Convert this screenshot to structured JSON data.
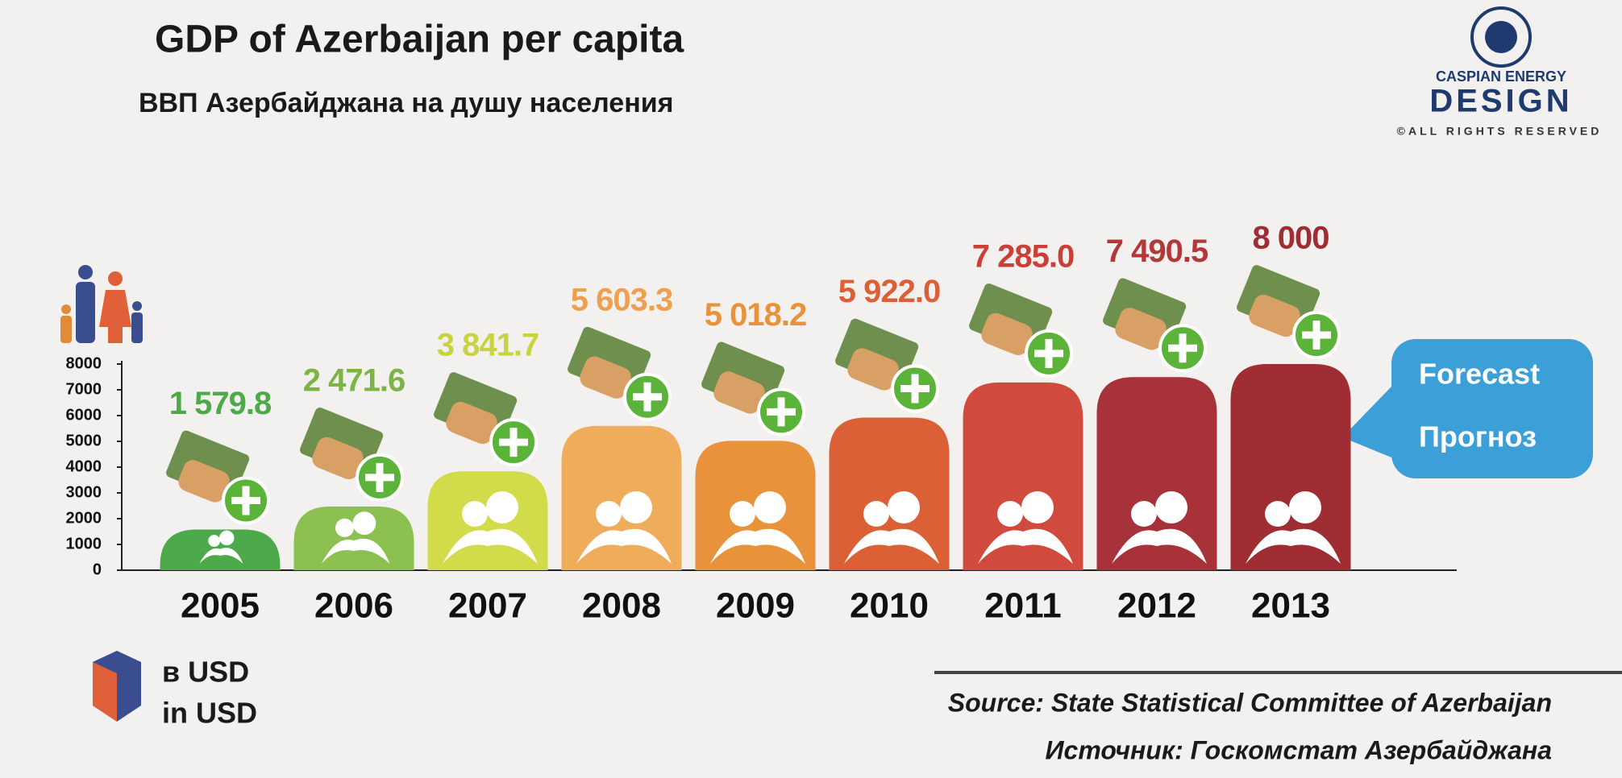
{
  "chart_data": {
    "type": "bar",
    "title": "GDP of Azerbaijan per capita",
    "subtitle": "ВВП Азербайджана на душу населения",
    "categories": [
      "2005",
      "2006",
      "2007",
      "2008",
      "2009",
      "2010",
      "2011",
      "2012",
      "2013"
    ],
    "values": [
      1579.8,
      2471.6,
      3841.7,
      5603.3,
      5018.2,
      5922.0,
      7285.0,
      7490.5,
      8000
    ],
    "value_labels": [
      "1 579.8",
      "2 471.6",
      "3 841.7",
      "5 603.3",
      "5 018.2",
      "5 922.0",
      "7 285.0",
      "7 490.5",
      "8 000"
    ],
    "colors": [
      "#4caa4a",
      "#8cc152",
      "#d2dc4a",
      "#efad5c",
      "#e8933c",
      "#dc6036",
      "#d04a3e",
      "#a8323a",
      "#a02c34"
    ],
    "label_colors": [
      "#4caa4a",
      "#7cb445",
      "#c9d33f",
      "#efa04e",
      "#e8933c",
      "#dc6036",
      "#cc3f38",
      "#b3383a",
      "#a02c34"
    ],
    "ylim": [
      0,
      8000
    ],
    "yticks": [
      0,
      1000,
      2000,
      3000,
      4000,
      5000,
      6000,
      7000,
      8000
    ],
    "grid": false,
    "annotations": [
      "Forecast",
      "Прогноз"
    ],
    "units": [
      "в USD",
      "in USD"
    ],
    "source": [
      "Source: State Statistical Committee of Azerbaijan",
      "Источник: Госкомстат Азербайджана"
    ],
    "logo": [
      "CASPIAN ENERGY",
      "DESIGN",
      "©ALL RIGHTS RESERVED"
    ]
  }
}
